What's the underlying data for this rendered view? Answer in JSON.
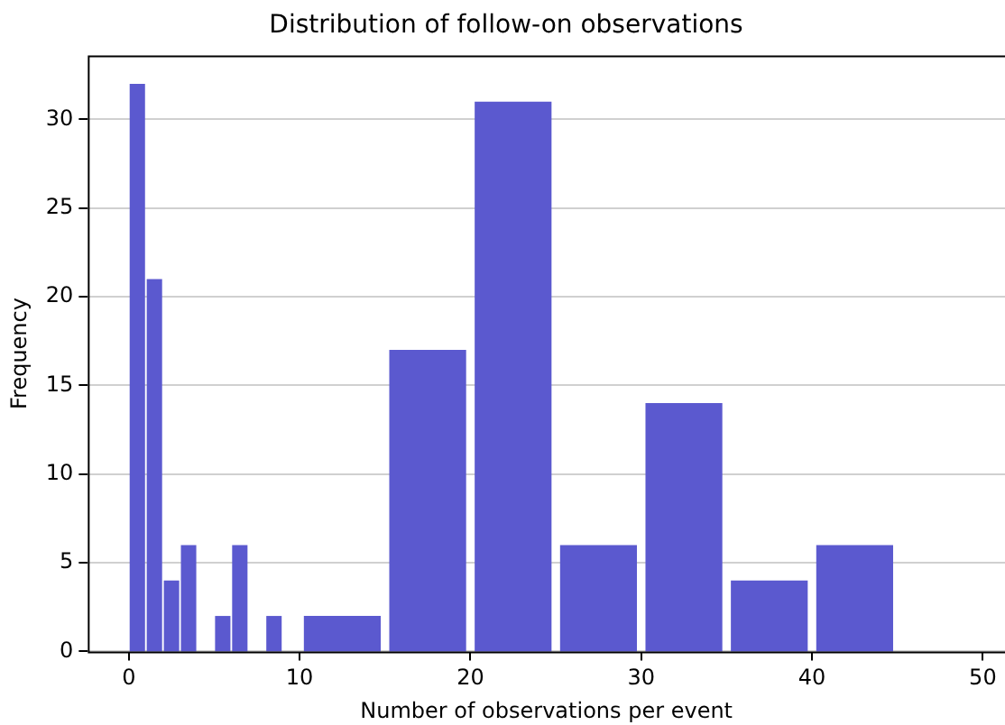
{
  "chart_data": {
    "type": "histogram",
    "title": "Distribution of follow-on observations",
    "xlabel": "Number of observations per event",
    "ylabel": "Frequency",
    "bins": [
      0,
      1,
      2,
      3,
      4,
      5,
      6,
      7,
      8,
      9,
      10,
      15,
      20,
      25,
      30,
      35,
      40,
      45
    ],
    "values": [
      32,
      21,
      4,
      6,
      0,
      2,
      6,
      0,
      2,
      0,
      2,
      17,
      31,
      6,
      14,
      4,
      6
    ],
    "color": "#5b59cf",
    "xlim": [
      -2.4,
      51.3
    ],
    "xticks": [
      0,
      10,
      20,
      30,
      40,
      50
    ],
    "ylim": [
      0,
      33.6
    ],
    "yticks": [
      0,
      5,
      10,
      15,
      20,
      25,
      30
    ],
    "grid": "y",
    "legend": false
  }
}
